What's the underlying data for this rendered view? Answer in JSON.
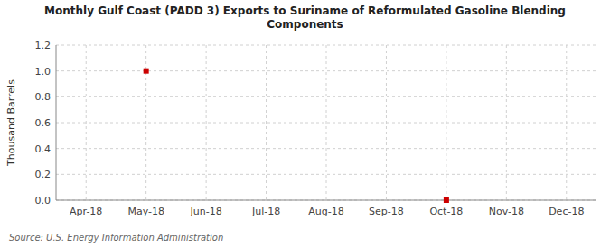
{
  "chart_data": {
    "type": "scatter",
    "title": "Monthly Gulf Coast (PADD 3) Exports to Suriname of Reformulated Gasoline Blending\nComponents",
    "y_label": "Thousand Barrels",
    "source": "Source: U.S. Energy Information Administration",
    "categories": [
      "Apr-18",
      "May-18",
      "Jun-18",
      "Jul-18",
      "Aug-18",
      "Sep-18",
      "Oct-18",
      "Nov-18",
      "Dec-18"
    ],
    "values": [
      null,
      1.0,
      null,
      null,
      null,
      null,
      0.0,
      null,
      null
    ],
    "color": "#cc0000",
    "marker": "square",
    "ylim": [
      0.0,
      1.2
    ],
    "yticks": [
      {
        "value": 0.0,
        "label": "0.0"
      },
      0.2,
      0.4,
      0.6,
      0.8,
      {
        "value": 1.0,
        "label": "1.0"
      },
      1.2
    ],
    "grid": true
  }
}
